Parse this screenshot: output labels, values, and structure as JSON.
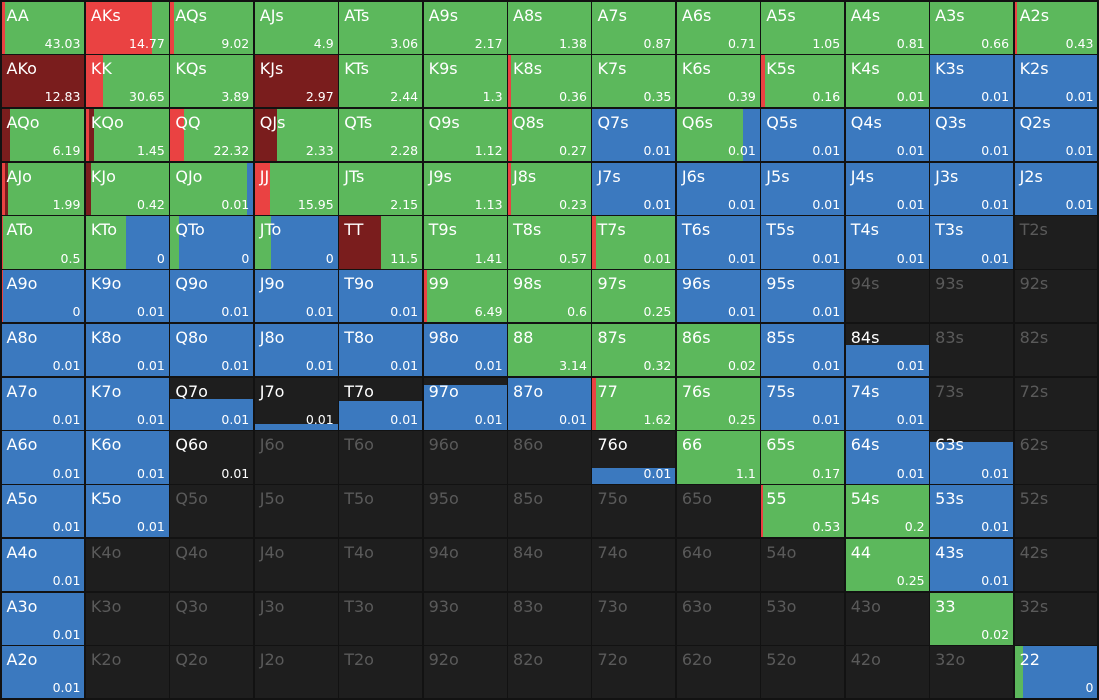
{
  "colors": [
    "#ea4242",
    "#7a1d1d",
    "#5cb85c",
    "#3b79bf"
  ],
  "cells": [
    [
      {
        "label": "AA",
        "value": 43.03,
        "mix": [
          0.04,
          0,
          0.96,
          0
        ]
      },
      {
        "label": "AKs",
        "value": 14.77,
        "mix": [
          0.8,
          0,
          0.2,
          0
        ]
      },
      {
        "label": "AQs",
        "value": 9.02,
        "mix": [
          0.04,
          0,
          0.96,
          0
        ]
      },
      {
        "label": "AJs",
        "value": 4.9,
        "mix": [
          0,
          0,
          1,
          0
        ]
      },
      {
        "label": "ATs",
        "value": 3.06,
        "mix": [
          0,
          0,
          1,
          0
        ]
      },
      {
        "label": "A9s",
        "value": 2.17,
        "mix": [
          0,
          0,
          1,
          0
        ]
      },
      {
        "label": "A8s",
        "value": 1.38,
        "mix": [
          0,
          0,
          1,
          0
        ]
      },
      {
        "label": "A7s",
        "value": 0.87,
        "mix": [
          0,
          0,
          1,
          0
        ]
      },
      {
        "label": "A6s",
        "value": 0.71,
        "mix": [
          0,
          0,
          1,
          0
        ]
      },
      {
        "label": "A5s",
        "value": 1.05,
        "mix": [
          0,
          0,
          1,
          0
        ]
      },
      {
        "label": "A4s",
        "value": 0.81,
        "mix": [
          0,
          0,
          1,
          0
        ]
      },
      {
        "label": "A3s",
        "value": 0.66,
        "mix": [
          0,
          0,
          1,
          0
        ]
      },
      {
        "label": "A2s",
        "value": 0.43,
        "mix": [
          0.03,
          0,
          0.97,
          0
        ]
      }
    ],
    [
      {
        "label": "AKo",
        "value": 12.83,
        "mix": [
          0,
          1,
          0,
          0
        ]
      },
      {
        "label": "KK",
        "value": 30.65,
        "mix": [
          0.21,
          0,
          0.79,
          0
        ]
      },
      {
        "label": "KQs",
        "value": 3.89,
        "mix": [
          0,
          0,
          1,
          0
        ]
      },
      {
        "label": "KJs",
        "value": 2.97,
        "mix": [
          0,
          1,
          0,
          0
        ]
      },
      {
        "label": "KTs",
        "value": 2.44,
        "mix": [
          0,
          0,
          1,
          0
        ]
      },
      {
        "label": "K9s",
        "value": 1.3,
        "mix": [
          0,
          0,
          1,
          0
        ]
      },
      {
        "label": "K8s",
        "value": 0.36,
        "mix": [
          0.04,
          0,
          0.96,
          0
        ]
      },
      {
        "label": "K7s",
        "value": 0.35,
        "mix": [
          0,
          0,
          1,
          0
        ]
      },
      {
        "label": "K6s",
        "value": 0.39,
        "mix": [
          0,
          0,
          1,
          0
        ]
      },
      {
        "label": "K5s",
        "value": 0.16,
        "mix": [
          0.05,
          0,
          0.95,
          0
        ]
      },
      {
        "label": "K4s",
        "value": 0.01,
        "mix": [
          0,
          0,
          1,
          0
        ]
      },
      {
        "label": "K3s",
        "value": 0.01,
        "mix": [
          0,
          0,
          0,
          1
        ]
      },
      {
        "label": "K2s",
        "value": 0.01,
        "mix": [
          0,
          0,
          0,
          1
        ]
      }
    ],
    [
      {
        "label": "AQo",
        "value": 6.19,
        "mix": [
          0,
          0.1,
          0.9,
          0
        ]
      },
      {
        "label": "KQo",
        "value": 1.45,
        "mix": [
          0.04,
          0.06,
          0.9,
          0
        ]
      },
      {
        "label": "QQ",
        "value": 22.32,
        "mix": [
          0.17,
          0,
          0.83,
          0
        ]
      },
      {
        "label": "QJs",
        "value": 2.33,
        "mix": [
          0,
          0.27,
          0.73,
          0
        ]
      },
      {
        "label": "QTs",
        "value": 2.28,
        "mix": [
          0,
          0,
          1,
          0
        ]
      },
      {
        "label": "Q9s",
        "value": 1.12,
        "mix": [
          0,
          0,
          1,
          0
        ]
      },
      {
        "label": "Q8s",
        "value": 0.27,
        "mix": [
          0.05,
          0,
          0.95,
          0
        ]
      },
      {
        "label": "Q7s",
        "value": 0.01,
        "mix": [
          0,
          0,
          0,
          1
        ]
      },
      {
        "label": "Q6s",
        "value": 0.01,
        "mix": [
          0,
          0,
          0.8,
          0.2
        ]
      },
      {
        "label": "Q5s",
        "value": 0.01,
        "mix": [
          0,
          0,
          0,
          1
        ]
      },
      {
        "label": "Q4s",
        "value": 0.01,
        "mix": [
          0,
          0,
          0,
          1
        ]
      },
      {
        "label": "Q3s",
        "value": 0.01,
        "mix": [
          0,
          0,
          0,
          1
        ]
      },
      {
        "label": "Q2s",
        "value": 0.01,
        "mix": [
          0,
          0,
          0,
          1
        ]
      }
    ],
    [
      {
        "label": "AJo",
        "value": 1.99,
        "mix": [
          0.04,
          0.04,
          0.92,
          0
        ]
      },
      {
        "label": "KJo",
        "value": 0.42,
        "mix": [
          0,
          0.06,
          0.94,
          0
        ]
      },
      {
        "label": "QJo",
        "value": 0.01,
        "mix": [
          0,
          0,
          0.93,
          0.07
        ]
      },
      {
        "label": "JJ",
        "value": 15.95,
        "mix": [
          0.18,
          0,
          0.82,
          0
        ]
      },
      {
        "label": "JTs",
        "value": 2.15,
        "mix": [
          0,
          0,
          1,
          0
        ]
      },
      {
        "label": "J9s",
        "value": 1.13,
        "mix": [
          0,
          0,
          1,
          0
        ]
      },
      {
        "label": "J8s",
        "value": 0.23,
        "mix": [
          0.04,
          0,
          0.96,
          0
        ]
      },
      {
        "label": "J7s",
        "value": 0.01,
        "mix": [
          0,
          0,
          0,
          1
        ]
      },
      {
        "label": "J6s",
        "value": 0.01,
        "mix": [
          0,
          0,
          0,
          1
        ]
      },
      {
        "label": "J5s",
        "value": 0.01,
        "mix": [
          0,
          0,
          0,
          1
        ]
      },
      {
        "label": "J4s",
        "value": 0.01,
        "mix": [
          0,
          0,
          0,
          1
        ]
      },
      {
        "label": "J3s",
        "value": 0.01,
        "mix": [
          0,
          0,
          0,
          1
        ]
      },
      {
        "label": "J2s",
        "value": 0.01,
        "mix": [
          0,
          0,
          0,
          1
        ]
      }
    ],
    [
      {
        "label": "ATo",
        "value": 0.5,
        "mix": [
          0.02,
          0,
          0.98,
          0
        ]
      },
      {
        "label": "KTo",
        "value": 0,
        "mix": [
          0,
          0,
          0.48,
          0.52
        ]
      },
      {
        "label": "QTo",
        "value": 0,
        "mix": [
          0,
          0,
          0.1,
          0.9
        ]
      },
      {
        "label": "JTo",
        "value": 0,
        "mix": [
          0,
          0,
          0.2,
          0.8
        ]
      },
      {
        "label": "TT",
        "value": 11.5,
        "mix": [
          0,
          0.5,
          0.5,
          0
        ]
      },
      {
        "label": "T9s",
        "value": 1.41,
        "mix": [
          0,
          0,
          1,
          0
        ]
      },
      {
        "label": "T8s",
        "value": 0.57,
        "mix": [
          0,
          0,
          1,
          0
        ]
      },
      {
        "label": "T7s",
        "value": 0.01,
        "mix": [
          0.04,
          0,
          0.96,
          0
        ]
      },
      {
        "label": "T6s",
        "value": 0.01,
        "mix": [
          0,
          0,
          0,
          1
        ]
      },
      {
        "label": "T5s",
        "value": 0.01,
        "mix": [
          0,
          0,
          0,
          1
        ]
      },
      {
        "label": "T4s",
        "value": 0.01,
        "mix": [
          0,
          0,
          0,
          1
        ]
      },
      {
        "label": "T3s",
        "value": 0.01,
        "mix": [
          0,
          0,
          0,
          1
        ]
      },
      {
        "label": "T2s"
      }
    ],
    [
      {
        "label": "A9o",
        "value": 0,
        "mix": [
          0.02,
          0,
          0,
          0.98
        ]
      },
      {
        "label": "K9o",
        "value": 0.01,
        "mix": [
          0,
          0,
          0,
          1
        ]
      },
      {
        "label": "Q9o",
        "value": 0.01,
        "mix": [
          0,
          0,
          0,
          1
        ]
      },
      {
        "label": "J9o",
        "value": 0.01,
        "mix": [
          0,
          0,
          0,
          1
        ]
      },
      {
        "label": "T9o",
        "value": 0.01,
        "mix": [
          0,
          0,
          0,
          1
        ]
      },
      {
        "label": "99",
        "value": 6.49,
        "mix": [
          0.04,
          0,
          0.96,
          0
        ]
      },
      {
        "label": "98s",
        "value": 0.6,
        "mix": [
          0,
          0,
          1,
          0
        ]
      },
      {
        "label": "97s",
        "value": 0.25,
        "mix": [
          0,
          0,
          1,
          0
        ]
      },
      {
        "label": "96s",
        "value": 0.01,
        "mix": [
          0,
          0,
          0,
          1
        ]
      },
      {
        "label": "95s",
        "value": 0.01,
        "mix": [
          0,
          0,
          0,
          1
        ]
      },
      {
        "label": "94s"
      },
      {
        "label": "93s"
      },
      {
        "label": "92s"
      }
    ],
    [
      {
        "label": "A8o",
        "value": 0.01,
        "mix": [
          0,
          0,
          0,
          1
        ]
      },
      {
        "label": "K8o",
        "value": 0.01,
        "mix": [
          0,
          0,
          0,
          1
        ]
      },
      {
        "label": "Q8o",
        "value": 0.01,
        "mix": [
          0,
          0,
          0,
          1
        ]
      },
      {
        "label": "J8o",
        "value": 0.01,
        "mix": [
          0,
          0,
          0,
          1
        ]
      },
      {
        "label": "T8o",
        "value": 0.01,
        "mix": [
          0,
          0,
          0,
          1
        ]
      },
      {
        "label": "98o",
        "value": 0.01,
        "mix": [
          0,
          0,
          0,
          1
        ]
      },
      {
        "label": "88",
        "value": 3.14,
        "mix": [
          0,
          0,
          1,
          0
        ]
      },
      {
        "label": "87s",
        "value": 0.32,
        "mix": [
          0,
          0,
          1,
          0
        ]
      },
      {
        "label": "86s",
        "value": 0.02,
        "mix": [
          0,
          0,
          1,
          0
        ]
      },
      {
        "label": "85s",
        "value": 0.01,
        "mix": [
          0,
          0,
          0,
          1
        ]
      },
      {
        "label": "84s",
        "value": 0.01,
        "mix": [
          0,
          0,
          0,
          1
        ],
        "weight": 0.6
      },
      {
        "label": "83s"
      },
      {
        "label": "82s"
      }
    ],
    [
      {
        "label": "A7o",
        "value": 0.01,
        "mix": [
          0,
          0,
          0,
          1
        ]
      },
      {
        "label": "K7o",
        "value": 0.01,
        "mix": [
          0,
          0,
          0,
          1
        ]
      },
      {
        "label": "Q7o",
        "value": 0.01,
        "mix": [
          0,
          0,
          0,
          1
        ],
        "weight": 0.6
      },
      {
        "label": "J7o",
        "value": 0.01,
        "mix": [
          0,
          0,
          0,
          1
        ],
        "weight": 0.12
      },
      {
        "label": "T7o",
        "value": 0.01,
        "mix": [
          0,
          0,
          0,
          1
        ],
        "weight": 0.55
      },
      {
        "label": "97o",
        "value": 0.01,
        "mix": [
          0,
          0,
          0,
          1
        ],
        "weight": 0.85
      },
      {
        "label": "87o",
        "value": 0.01,
        "mix": [
          0,
          0,
          0,
          1
        ]
      },
      {
        "label": "77",
        "value": 1.62,
        "mix": [
          0.04,
          0,
          0.96,
          0
        ]
      },
      {
        "label": "76s",
        "value": 0.25,
        "mix": [
          0,
          0,
          1,
          0
        ]
      },
      {
        "label": "75s",
        "value": 0.01,
        "mix": [
          0,
          0,
          0,
          1
        ]
      },
      {
        "label": "74s",
        "value": 0.01,
        "mix": [
          0,
          0,
          0,
          1
        ]
      },
      {
        "label": "73s"
      },
      {
        "label": "72s"
      }
    ],
    [
      {
        "label": "A6o",
        "value": 0.01,
        "mix": [
          0,
          0,
          0,
          1
        ]
      },
      {
        "label": "K6o",
        "value": 0.01,
        "mix": [
          0,
          0,
          0,
          1
        ]
      },
      {
        "label": "Q6o",
        "value": 0.01,
        "mix": [
          0,
          0,
          0,
          1
        ],
        "weight": 0
      },
      {
        "label": "J6o"
      },
      {
        "label": "T6o"
      },
      {
        "label": "96o"
      },
      {
        "label": "86o"
      },
      {
        "label": "76o",
        "value": 0.01,
        "mix": [
          0,
          0,
          0,
          1
        ],
        "weight": 0.3
      },
      {
        "label": "66",
        "value": 1.1,
        "mix": [
          0,
          0,
          1,
          0
        ]
      },
      {
        "label": "65s",
        "value": 0.17,
        "mix": [
          0,
          0,
          1,
          0
        ]
      },
      {
        "label": "64s",
        "value": 0.01,
        "mix": [
          0,
          0,
          0,
          1
        ]
      },
      {
        "label": "63s",
        "value": 0.01,
        "mix": [
          0,
          0,
          0,
          1
        ],
        "weight": 0.8
      },
      {
        "label": "62s"
      }
    ],
    [
      {
        "label": "A5o",
        "value": 0.01,
        "mix": [
          0,
          0,
          0,
          1
        ]
      },
      {
        "label": "K5o",
        "value": 0.01,
        "mix": [
          0,
          0,
          0,
          1
        ]
      },
      {
        "label": "Q5o"
      },
      {
        "label": "J5o"
      },
      {
        "label": "T5o"
      },
      {
        "label": "95o"
      },
      {
        "label": "85o"
      },
      {
        "label": "75o"
      },
      {
        "label": "65o"
      },
      {
        "label": "55",
        "value": 0.53,
        "mix": [
          0.02,
          0,
          0.98,
          0
        ]
      },
      {
        "label": "54s",
        "value": 0.2,
        "mix": [
          0,
          0,
          1,
          0
        ]
      },
      {
        "label": "53s",
        "value": 0.01,
        "mix": [
          0,
          0,
          0,
          1
        ]
      },
      {
        "label": "52s"
      }
    ],
    [
      {
        "label": "A4o",
        "value": 0.01,
        "mix": [
          0,
          0,
          0,
          1
        ]
      },
      {
        "label": "K4o"
      },
      {
        "label": "Q4o"
      },
      {
        "label": "J4o"
      },
      {
        "label": "T4o"
      },
      {
        "label": "94o"
      },
      {
        "label": "84o"
      },
      {
        "label": "74o"
      },
      {
        "label": "64o"
      },
      {
        "label": "54o"
      },
      {
        "label": "44",
        "value": 0.25,
        "mix": [
          0,
          0,
          1,
          0
        ]
      },
      {
        "label": "43s",
        "value": 0.01,
        "mix": [
          0,
          0,
          0,
          1
        ]
      },
      {
        "label": "42s"
      }
    ],
    [
      {
        "label": "A3o",
        "value": 0.01,
        "mix": [
          0,
          0,
          0,
          1
        ]
      },
      {
        "label": "K3o"
      },
      {
        "label": "Q3o"
      },
      {
        "label": "J3o"
      },
      {
        "label": "T3o"
      },
      {
        "label": "93o"
      },
      {
        "label": "83o"
      },
      {
        "label": "73o"
      },
      {
        "label": "63o"
      },
      {
        "label": "53o"
      },
      {
        "label": "43o"
      },
      {
        "label": "33",
        "value": 0.02,
        "mix": [
          0,
          0,
          1,
          0
        ]
      },
      {
        "label": "32s"
      }
    ],
    [
      {
        "label": "A2o",
        "value": 0.01,
        "mix": [
          0,
          0,
          0,
          1
        ]
      },
      {
        "label": "K2o"
      },
      {
        "label": "Q2o"
      },
      {
        "label": "J2o"
      },
      {
        "label": "T2o"
      },
      {
        "label": "92o"
      },
      {
        "label": "82o"
      },
      {
        "label": "72o"
      },
      {
        "label": "62o"
      },
      {
        "label": "52o"
      },
      {
        "label": "42o"
      },
      {
        "label": "32o"
      },
      {
        "label": "22",
        "value": 0,
        "mix": [
          0,
          0,
          0.1,
          0.9
        ]
      }
    ]
  ]
}
